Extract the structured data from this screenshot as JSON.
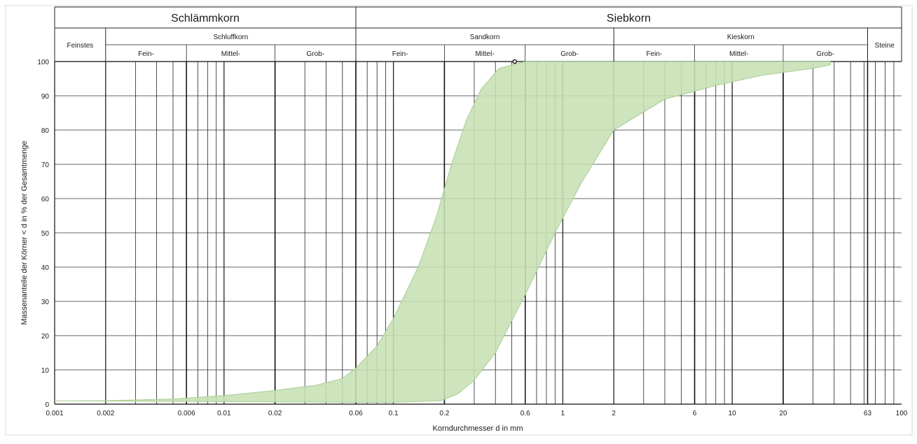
{
  "chart_data": {
    "type": "area",
    "xscale": "log",
    "xlim": [
      0.001,
      100
    ],
    "ylim": [
      0,
      100
    ],
    "grid": true,
    "xlabel": "Korndurchmesser d in mm",
    "ylabel": "Massenanteile der Körner < d in % der Gesamtmenge",
    "x_ticks": [
      {
        "value": 0.001,
        "label": "0.001"
      },
      {
        "value": 0.002,
        "label": "0.002"
      },
      {
        "value": 0.006,
        "label": "0.006"
      },
      {
        "value": 0.01,
        "label": "0.01"
      },
      {
        "value": 0.02,
        "label": "0.02"
      },
      {
        "value": 0.06,
        "label": "0.06"
      },
      {
        "value": 0.1,
        "label": "0.1"
      },
      {
        "value": 0.2,
        "label": "0.2"
      },
      {
        "value": 0.6,
        "label": "0.6"
      },
      {
        "value": 1,
        "label": "1"
      },
      {
        "value": 2,
        "label": "2"
      },
      {
        "value": 6,
        "label": "6"
      },
      {
        "value": 10,
        "label": "10"
      },
      {
        "value": 20,
        "label": "20"
      },
      {
        "value": 63,
        "label": "63"
      },
      {
        "value": 100,
        "label": "100"
      }
    ],
    "y_ticks": [
      {
        "value": 0,
        "label": "0"
      },
      {
        "value": 10,
        "label": "10"
      },
      {
        "value": 20,
        "label": "20"
      },
      {
        "value": 30,
        "label": "30"
      },
      {
        "value": 40,
        "label": "40"
      },
      {
        "value": 50,
        "label": "50"
      },
      {
        "value": 60,
        "label": "60"
      },
      {
        "value": 70,
        "label": "70"
      },
      {
        "value": 80,
        "label": "80"
      },
      {
        "value": 90,
        "label": "90"
      },
      {
        "value": 100,
        "label": "100"
      }
    ],
    "band_color": "#c6e0b3",
    "band_edge_color": "#a9cd93",
    "band": {
      "upper": [
        [
          0.001,
          1
        ],
        [
          0.002,
          1
        ],
        [
          0.005,
          1.5
        ],
        [
          0.01,
          2.5
        ],
        [
          0.02,
          4
        ],
        [
          0.035,
          5.5
        ],
        [
          0.05,
          7.5
        ],
        [
          0.06,
          10.5
        ],
        [
          0.08,
          17
        ],
        [
          0.1,
          25
        ],
        [
          0.14,
          40
        ],
        [
          0.18,
          55
        ],
        [
          0.22,
          70
        ],
        [
          0.27,
          83
        ],
        [
          0.33,
          92
        ],
        [
          0.42,
          98
        ],
        [
          0.6,
          100
        ],
        [
          1,
          100
        ],
        [
          2,
          100
        ],
        [
          6,
          100
        ],
        [
          20,
          100
        ],
        [
          38,
          100
        ]
      ],
      "lower": [
        [
          38,
          99
        ],
        [
          30,
          98
        ],
        [
          15,
          96
        ],
        [
          8,
          93
        ],
        [
          4,
          89
        ],
        [
          2,
          80
        ],
        [
          1.3,
          65
        ],
        [
          0.9,
          50
        ],
        [
          0.6,
          32
        ],
        [
          0.4,
          15
        ],
        [
          0.3,
          7
        ],
        [
          0.24,
          3
        ],
        [
          0.19,
          1
        ],
        [
          0.1,
          0.5
        ],
        [
          0.06,
          0.5
        ]
      ]
    },
    "marker": {
      "x": 0.52,
      "y": 100
    },
    "header": {
      "top": [
        {
          "label": "Schlämmkorn",
          "from": 0.001,
          "to": 0.06
        },
        {
          "label": "Siebkorn",
          "from": 0.06,
          "to": 100
        }
      ],
      "groups": [
        {
          "label": "Feinstes",
          "from": 0.001,
          "to": 0.002
        },
        {
          "label": "Schluffkorn",
          "from": 0.002,
          "to": 0.06
        },
        {
          "label": "Sandkorn",
          "from": 0.06,
          "to": 2
        },
        {
          "label": "Kieskorn",
          "from": 2,
          "to": 63
        },
        {
          "label": "Steine",
          "from": 63,
          "to": 100
        }
      ],
      "subgroups": [
        {
          "label": "Fein-",
          "from": 0.002,
          "to": 0.006
        },
        {
          "label": "Mittel-",
          "from": 0.006,
          "to": 0.02
        },
        {
          "label": "Grob-",
          "from": 0.02,
          "to": 0.06
        },
        {
          "label": "Fein-",
          "from": 0.06,
          "to": 0.2
        },
        {
          "label": "Mittel-",
          "from": 0.2,
          "to": 0.6
        },
        {
          "label": "Grob-",
          "from": 0.6,
          "to": 2
        },
        {
          "label": "Fein-",
          "from": 2,
          "to": 6
        },
        {
          "label": "Mittel-",
          "from": 6,
          "to": 20
        },
        {
          "label": "Grob-",
          "from": 20,
          "to": 63
        }
      ]
    }
  }
}
